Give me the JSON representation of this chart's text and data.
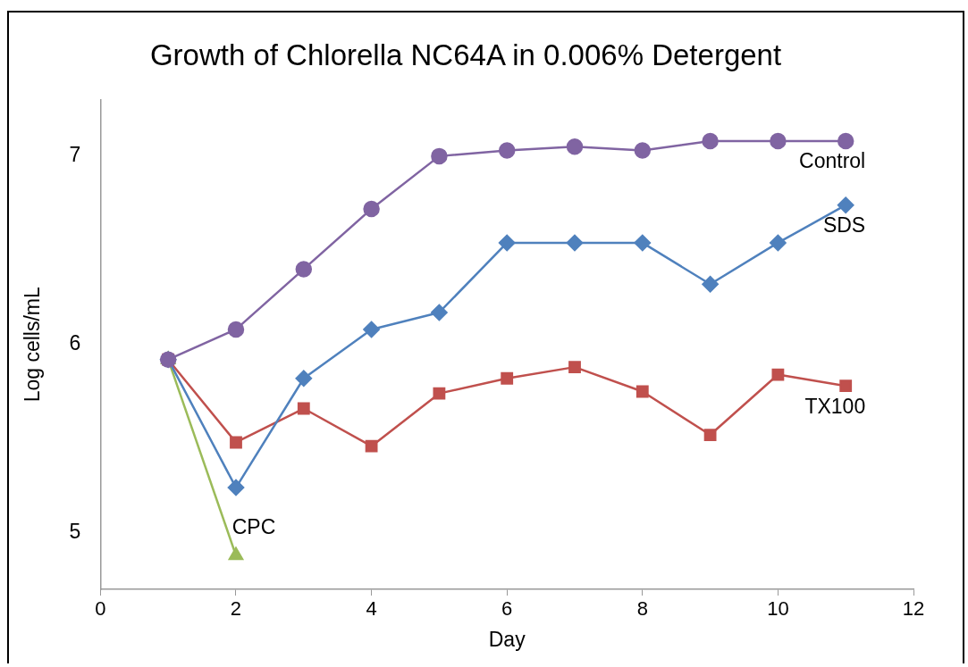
{
  "chart_data": {
    "type": "line",
    "title": "Growth of Chlorella NC64A in 0.006% Detergent",
    "xlabel": "Day",
    "ylabel": "Log cells/mL",
    "x": [
      1,
      2,
      3,
      4,
      5,
      6,
      7,
      8,
      9,
      10,
      11
    ],
    "xlim": [
      0,
      12
    ],
    "xticks": [
      0,
      2,
      4,
      6,
      8,
      10,
      12
    ],
    "ylim": [
      4.7,
      7.3
    ],
    "yticks": [
      5,
      6,
      7
    ],
    "grid": false,
    "legend": false,
    "series": [
      {
        "name": "Control",
        "color": "#8064a2",
        "marker": "circle",
        "values": [
          5.92,
          6.08,
          6.4,
          6.72,
          7.0,
          7.03,
          7.05,
          7.03,
          7.08,
          7.08,
          7.08
        ]
      },
      {
        "name": "SDS",
        "color": "#4f81bd",
        "marker": "diamond",
        "values": [
          5.92,
          5.24,
          5.82,
          6.08,
          6.17,
          6.54,
          6.54,
          6.54,
          6.32,
          6.54,
          6.74
        ]
      },
      {
        "name": "TX100",
        "color": "#c0504d",
        "marker": "square",
        "values": [
          5.92,
          5.48,
          5.66,
          5.46,
          5.74,
          5.82,
          5.88,
          5.75,
          5.52,
          5.84,
          5.78
        ]
      },
      {
        "name": "CPC",
        "color": "#9bbb59",
        "marker": "triangle",
        "x": [
          1,
          2
        ],
        "values": [
          5.92,
          4.88
        ]
      }
    ]
  }
}
